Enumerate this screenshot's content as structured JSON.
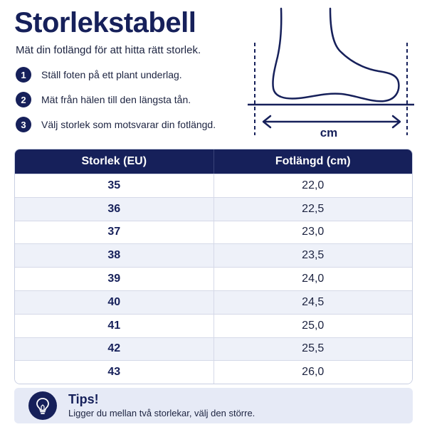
{
  "header": {
    "title": "Storlekstabell",
    "subtitle": "Mät din fotlängd för att hitta rätt storlek."
  },
  "steps": [
    {
      "number": "1",
      "text": "Ställ foten på ett plant underlag."
    },
    {
      "number": "2",
      "text": "Mät från hälen till den längsta tån."
    },
    {
      "number": "3",
      "text": "Välj storlek som motsvarar din fotlängd."
    }
  ],
  "diagram": {
    "unit_label": "cm"
  },
  "table": {
    "headers": [
      "Storlek (EU)",
      "Fotlängd (cm)"
    ],
    "rows": [
      {
        "size": "35",
        "length": "22,0"
      },
      {
        "size": "36",
        "length": "22,5"
      },
      {
        "size": "37",
        "length": "23,0"
      },
      {
        "size": "38",
        "length": "23,5"
      },
      {
        "size": "39",
        "length": "24,0"
      },
      {
        "size": "40",
        "length": "24,5"
      },
      {
        "size": "41",
        "length": "25,0"
      },
      {
        "size": "42",
        "length": "25,5"
      },
      {
        "size": "43",
        "length": "26,0"
      }
    ]
  },
  "tips": {
    "title": "Tips!",
    "text": "Ligger du mellan två storlekar, välj den större.",
    "icon": "lightbulb-icon"
  },
  "colors": {
    "navy": "#16205a",
    "row_alt": "#eef1f9",
    "tips_bg": "#e6eaf6"
  }
}
